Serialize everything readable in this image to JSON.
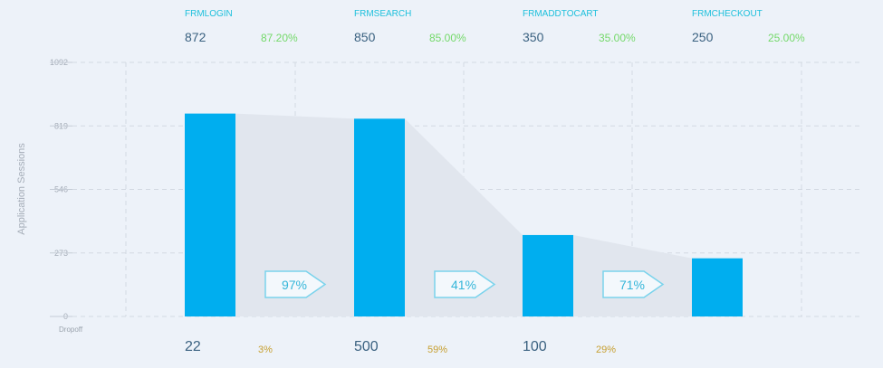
{
  "chart_data": {
    "type": "bar",
    "categories": [
      "FRMLOGIN",
      "FRMSEARCH",
      "FRMADDTOCART",
      "FRMCHECKOUT"
    ],
    "values": [
      872,
      850,
      350,
      250
    ],
    "stage_percents": [
      "87.20%",
      "85.00%",
      "35.00%",
      "25.00%"
    ],
    "conversion_percents": [
      "97%",
      "41%",
      "71%"
    ],
    "dropoff_counts": [
      "22",
      "500",
      "100"
    ],
    "dropoff_percents": [
      "3%",
      "59%",
      "29%"
    ],
    "ylabel": "Application Sessions",
    "dropoff_label": "Dropoff",
    "yticks": [
      0,
      273,
      546,
      819,
      1092
    ],
    "ylim": [
      0,
      1092
    ],
    "grid": true
  },
  "colors": {
    "bar": "#00aeef",
    "stage_name": "#1ec0dc",
    "stage_percent": "#74d96a",
    "dropoff_percent": "#c7a032",
    "count_text": "#3a6180",
    "arrow_stroke": "#7ad3ec",
    "arrow_text": "#35b6d9",
    "funnel_fill": "#e1e6ee"
  }
}
